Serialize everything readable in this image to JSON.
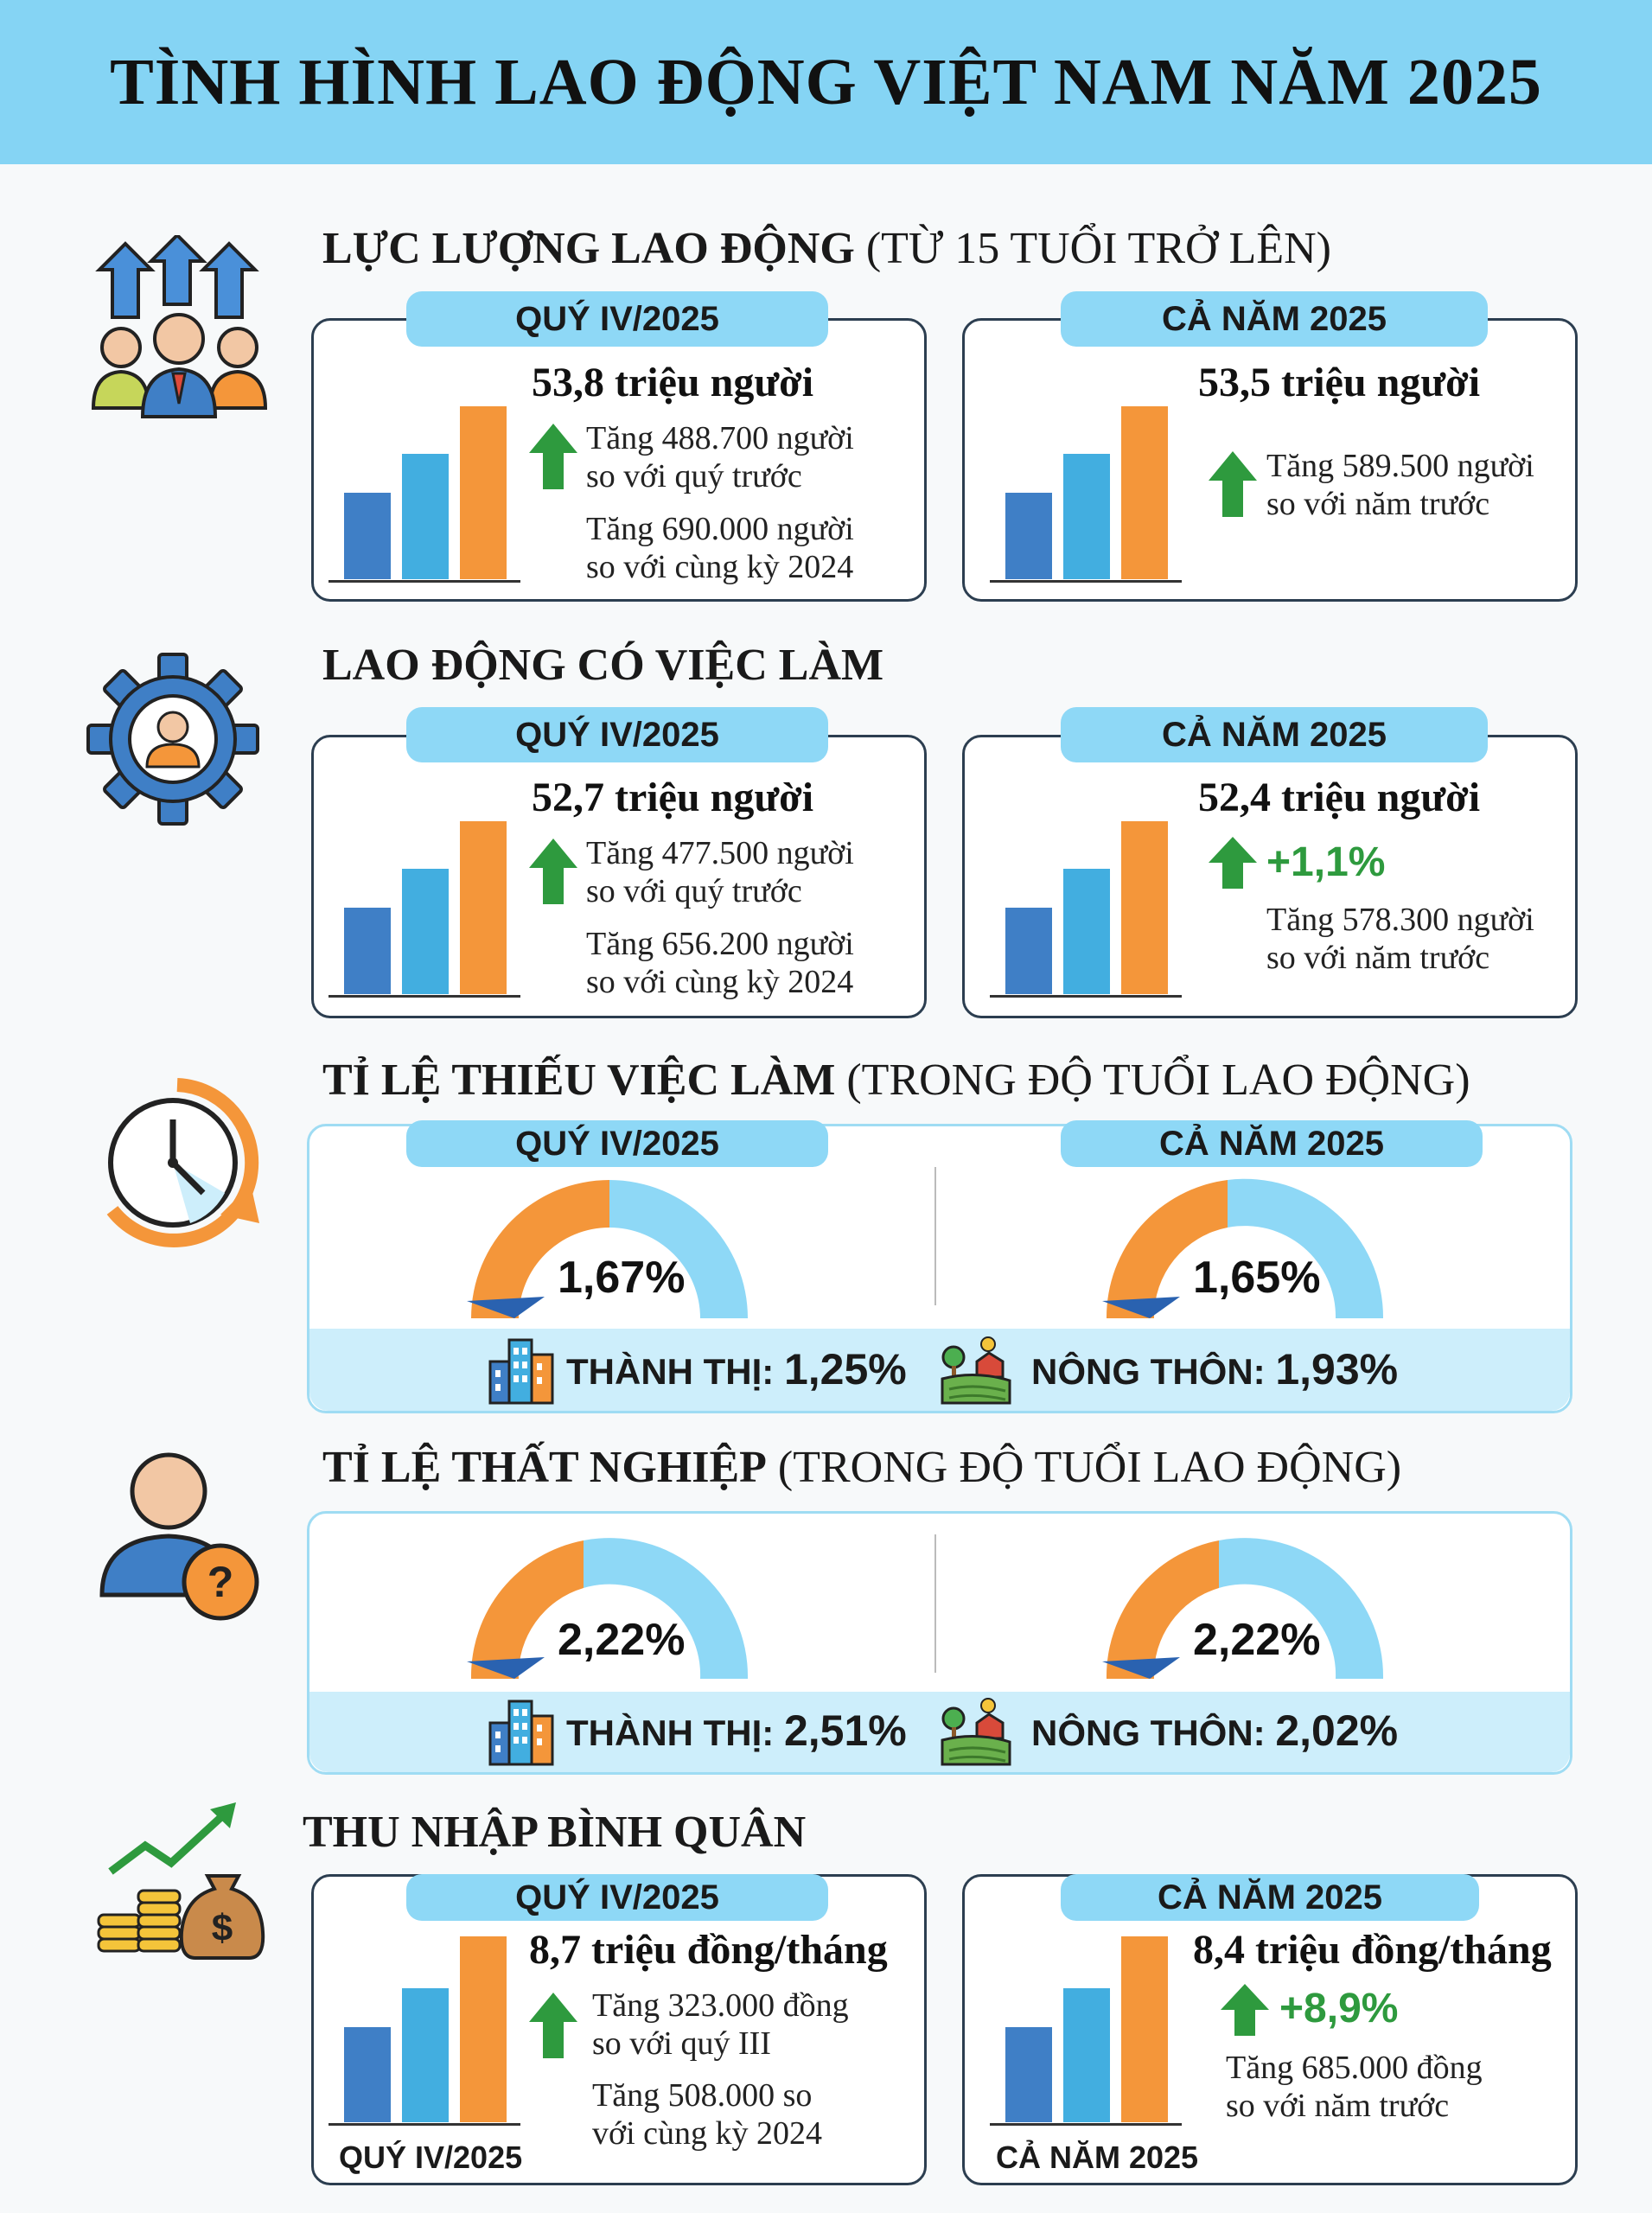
{
  "title": "TÌNH HÌNH LAO ĐỘNG VIỆT NAM NĂM 2025",
  "colors": {
    "banner": "#85d4f4",
    "tag": "#8ed8f6",
    "bar1": "#3f7fc6",
    "bar2": "#42aee0",
    "bar3": "#f4963a",
    "up": "#2e9a3e",
    "gauge_fill": "#f4963a",
    "gauge_bg": "#8ed8f6",
    "strip": "#cdeefb"
  },
  "s1": {
    "icon": "people-growth-icon",
    "title_bold": "LỰC LƯỢNG LAO ĐỘNG",
    "title_normal": "(TỪ 15 TUỔI TRỞ LÊN)",
    "left": {
      "tag": "QUÝ IV/2025",
      "value": "53,8 triệu người",
      "n1a": "Tăng 488.700 người",
      "n1b": "so với quý trước",
      "n2a": "Tăng 690.000 người",
      "n2b": "so với cùng kỳ 2024"
    },
    "right": {
      "tag": "CẢ NĂM 2025",
      "value": "53,5 triệu người",
      "n1a": "Tăng 589.500 người",
      "n1b": "so với năm trước"
    }
  },
  "s2": {
    "icon": "employee-gear-icon",
    "title_bold": "LAO ĐỘNG CÓ VIỆC LÀM",
    "left": {
      "tag": "QUÝ IV/2025",
      "value": "52,7 triệu người",
      "n1a": "Tăng 477.500 người",
      "n1b": "so với quý trước",
      "n2a": "Tăng 656.200 người",
      "n2b": "so với cùng kỳ 2024"
    },
    "right": {
      "tag": "CẢ NĂM 2025",
      "value": "52,4 triệu người",
      "pct": "+1,1%",
      "n1a": "Tăng 578.300 người",
      "n1b": "so với năm trước"
    }
  },
  "s3": {
    "icon": "clock-icon",
    "title_bold": "TỈ LỆ THIẾU VIỆC LÀM",
    "title_normal": "(TRONG ĐỘ TUỔI LAO ĐỘNG)",
    "left": {
      "tag": "QUÝ IV/2025",
      "value": "1,67%"
    },
    "right": {
      "tag": "CẢ NĂM 2025",
      "value": "1,65%"
    },
    "urban_label": "THÀNH THỊ:",
    "urban_value": "1,25%",
    "rural_label": "NÔNG THÔN:",
    "rural_value": "1,93%"
  },
  "s4": {
    "icon": "unemployed-person-icon",
    "title_bold": "TỈ LỆ THẤT NGHIỆP",
    "title_normal": "(TRONG ĐỘ TUỔI LAO ĐỘNG)",
    "left": {
      "value": "2,22%"
    },
    "right": {
      "value": "2,22%"
    },
    "urban_label": "THÀNH THỊ:",
    "urban_value": "2,51%",
    "rural_label": "NÔNG THÔN:",
    "rural_value": "2,02%"
  },
  "s5": {
    "icon": "income-coins-icon",
    "title_bold": "THU NHẬP BÌNH QUÂN",
    "left": {
      "tag": "QUÝ IV/2025",
      "value": "8,7 triệu đồng/tháng",
      "n1a": "Tăng 323.000 đồng",
      "n1b": "so với quý III",
      "n2a": "Tăng 508.000 so",
      "n2b": "với cùng kỳ 2024",
      "axis_label": "QUÝ IV/2025"
    },
    "right": {
      "tag": "CẢ NĂM 2025",
      "value": "8,4 triệu đồng/tháng",
      "pct": "+8,9%",
      "n1a": "Tăng 685.000 đồng",
      "n1b": "so với năm trước",
      "axis_label": "CẢ NĂM 2025"
    }
  }
}
